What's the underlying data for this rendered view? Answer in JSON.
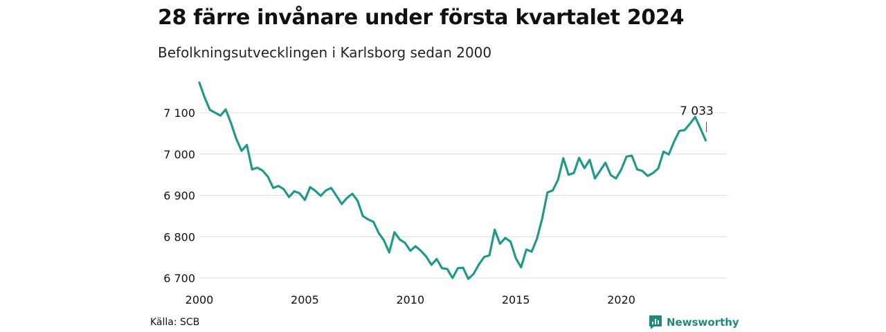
{
  "title": "28 färre invånare under första kvartalet 2024",
  "subtitle": "Befolkningsutvecklingen i Karlsborg sedan 2000",
  "source": "Källa: SCB",
  "brand": {
    "name": "Newsworthy",
    "icon": "newsworthy-logo-icon",
    "color": "#1f8a7b"
  },
  "chart_data": {
    "type": "line",
    "title": "28 färre invånare under första kvartalet 2024",
    "subtitle": "Befolkningsutvecklingen i Karlsborg sedan 2000",
    "xlabel": "",
    "ylabel": "",
    "xlim": [
      2000,
      2025
    ],
    "ylim": [
      6690,
      7180
    ],
    "x_ticks": [
      2000,
      2005,
      2010,
      2015,
      2020
    ],
    "x_tick_labels": [
      "2000",
      "2005",
      "2010",
      "2015",
      "2020"
    ],
    "y_ticks": [
      6700,
      6800,
      6900,
      7000,
      7100
    ],
    "y_tick_labels": [
      "6 700",
      "6 800",
      "6 900",
      "7 000",
      "7 100"
    ],
    "grid": "horizontal",
    "line_color": "#1f9a88",
    "annotation": {
      "x": 2024.0,
      "y": 7033,
      "label": "7 033"
    },
    "series": [
      {
        "x": [
          2000.0,
          2000.25,
          2000.5,
          2000.75,
          2001.0,
          2001.25,
          2001.5,
          2001.75,
          2002.0,
          2002.25,
          2002.5,
          2002.75,
          2003.0,
          2003.25,
          2003.5,
          2003.75,
          2004.0,
          2004.25,
          2004.5,
          2004.75,
          2005.0,
          2005.25,
          2005.5,
          2005.75,
          2006.0,
          2006.25,
          2006.5,
          2006.75,
          2007.0,
          2007.25,
          2007.5,
          2007.75,
          2008.0,
          2008.25,
          2008.5,
          2008.75,
          2009.0,
          2009.25,
          2009.5,
          2009.75,
          2010.0,
          2010.25,
          2010.5,
          2010.75,
          2011.0,
          2011.25,
          2011.5,
          2011.75,
          2012.0,
          2012.25,
          2012.5,
          2012.75,
          2013.0,
          2013.25,
          2013.5,
          2013.75,
          2014.0,
          2014.25,
          2014.5,
          2014.75,
          2015.0,
          2015.25,
          2015.5,
          2015.75,
          2016.0,
          2016.25,
          2016.5,
          2016.75,
          2017.0,
          2017.25,
          2017.5,
          2017.75,
          2018.0,
          2018.25,
          2018.5,
          2018.75,
          2019.0,
          2019.25,
          2019.5,
          2019.75,
          2020.0,
          2020.25,
          2020.5,
          2020.75,
          2021.0,
          2021.25,
          2021.5,
          2021.75,
          2022.0,
          2022.25,
          2022.5,
          2022.75,
          2023.0,
          2023.25,
          2023.5,
          2023.75,
          2024.0
        ],
        "values": [
          7173,
          7137,
          7107,
          7100,
          7093,
          7108,
          7075,
          7037,
          7008,
          7022,
          6963,
          6967,
          6960,
          6945,
          6918,
          6923,
          6915,
          6896,
          6910,
          6905,
          6889,
          6920,
          6911,
          6899,
          6912,
          6918,
          6899,
          6879,
          6894,
          6904,
          6887,
          6850,
          6842,
          6836,
          6809,
          6791,
          6762,
          6811,
          6793,
          6785,
          6766,
          6777,
          6766,
          6752,
          6732,
          6746,
          6724,
          6722,
          6700,
          6724,
          6725,
          6698,
          6710,
          6733,
          6751,
          6755,
          6817,
          6783,
          6797,
          6788,
          6748,
          6726,
          6769,
          6764,
          6795,
          6844,
          6907,
          6912,
          6938,
          6990,
          6950,
          6954,
          6991,
          6966,
          6986,
          6941,
          6960,
          6979,
          6949,
          6941,
          6963,
          6994,
          6996,
          6963,
          6959,
          6947,
          6954,
          6965,
          7006,
          6999,
          7030,
          7056,
          7058,
          7073,
          7090,
          7062,
          7033
        ]
      }
    ]
  }
}
